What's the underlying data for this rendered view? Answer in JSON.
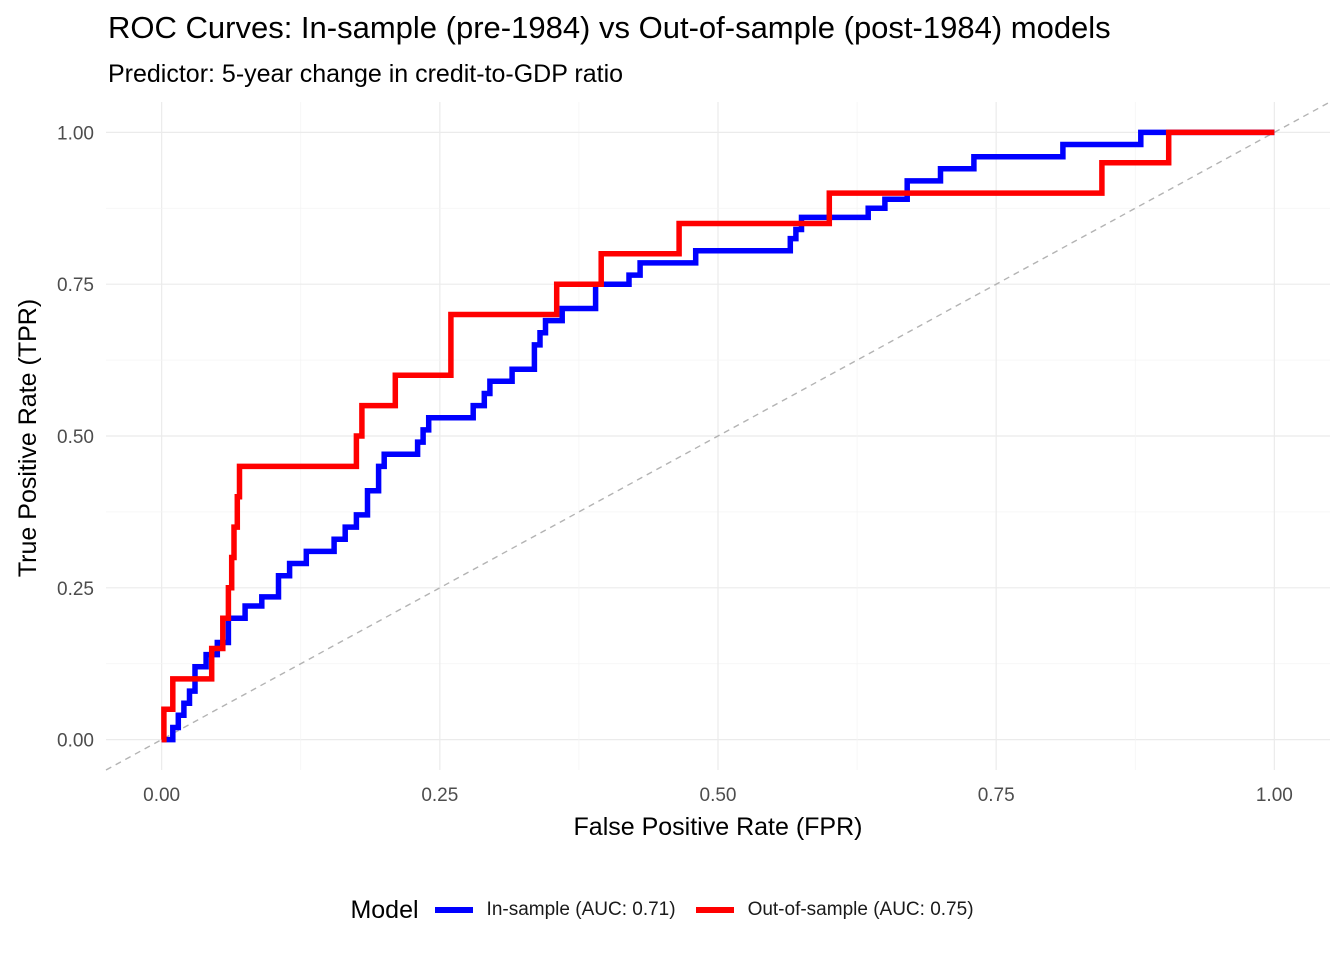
{
  "chart_data": {
    "type": "line",
    "title": "ROC Curves: In-sample (pre-1984) vs Out-of-sample (post-1984) models",
    "subtitle": "Predictor: 5-year change in credit-to-GDP ratio",
    "xlabel": "False Positive Rate (FPR)",
    "ylabel": "True Positive Rate (TPR)",
    "xlim": [
      -0.05,
      1.05
    ],
    "ylim": [
      -0.05,
      1.05
    ],
    "x_ticks": [
      "0.00",
      "0.25",
      "0.50",
      "0.75",
      "1.00"
    ],
    "y_ticks": [
      "0.00",
      "0.25",
      "0.50",
      "0.75",
      "1.00"
    ],
    "grid": true,
    "legend": {
      "title": "Model",
      "position": "bottom"
    },
    "reference_line": {
      "style": "dashed",
      "color": "#b3b3b3",
      "from": [
        0,
        0
      ],
      "to": [
        1,
        1
      ]
    },
    "series": [
      {
        "name": "In-sample (AUC: 0.71)",
        "color": "#0000ff",
        "points": [
          [
            0,
            0
          ],
          [
            0.01,
            0
          ],
          [
            0.01,
            0.02
          ],
          [
            0.015,
            0.02
          ],
          [
            0.015,
            0.04
          ],
          [
            0.02,
            0.04
          ],
          [
            0.02,
            0.06
          ],
          [
            0.025,
            0.06
          ],
          [
            0.025,
            0.08
          ],
          [
            0.03,
            0.08
          ],
          [
            0.03,
            0.12
          ],
          [
            0.04,
            0.12
          ],
          [
            0.04,
            0.14
          ],
          [
            0.05,
            0.14
          ],
          [
            0.05,
            0.16
          ],
          [
            0.06,
            0.16
          ],
          [
            0.06,
            0.2
          ],
          [
            0.075,
            0.2
          ],
          [
            0.075,
            0.22
          ],
          [
            0.09,
            0.22
          ],
          [
            0.09,
            0.235
          ],
          [
            0.105,
            0.235
          ],
          [
            0.105,
            0.27
          ],
          [
            0.115,
            0.27
          ],
          [
            0.115,
            0.29
          ],
          [
            0.13,
            0.29
          ],
          [
            0.13,
            0.31
          ],
          [
            0.155,
            0.31
          ],
          [
            0.155,
            0.33
          ],
          [
            0.165,
            0.33
          ],
          [
            0.165,
            0.35
          ],
          [
            0.175,
            0.35
          ],
          [
            0.175,
            0.37
          ],
          [
            0.185,
            0.37
          ],
          [
            0.185,
            0.41
          ],
          [
            0.195,
            0.41
          ],
          [
            0.195,
            0.45
          ],
          [
            0.2,
            0.45
          ],
          [
            0.2,
            0.47
          ],
          [
            0.23,
            0.47
          ],
          [
            0.23,
            0.49
          ],
          [
            0.235,
            0.49
          ],
          [
            0.235,
            0.51
          ],
          [
            0.24,
            0.51
          ],
          [
            0.24,
            0.53
          ],
          [
            0.28,
            0.53
          ],
          [
            0.28,
            0.55
          ],
          [
            0.29,
            0.55
          ],
          [
            0.29,
            0.57
          ],
          [
            0.295,
            0.57
          ],
          [
            0.295,
            0.59
          ],
          [
            0.315,
            0.59
          ],
          [
            0.315,
            0.61
          ],
          [
            0.335,
            0.61
          ],
          [
            0.335,
            0.65
          ],
          [
            0.34,
            0.65
          ],
          [
            0.34,
            0.67
          ],
          [
            0.345,
            0.67
          ],
          [
            0.345,
            0.69
          ],
          [
            0.36,
            0.69
          ],
          [
            0.36,
            0.71
          ],
          [
            0.39,
            0.71
          ],
          [
            0.39,
            0.75
          ],
          [
            0.42,
            0.75
          ],
          [
            0.42,
            0.765
          ],
          [
            0.43,
            0.765
          ],
          [
            0.43,
            0.785
          ],
          [
            0.48,
            0.785
          ],
          [
            0.48,
            0.805
          ],
          [
            0.565,
            0.805
          ],
          [
            0.565,
            0.825
          ],
          [
            0.57,
            0.825
          ],
          [
            0.57,
            0.84
          ],
          [
            0.575,
            0.84
          ],
          [
            0.575,
            0.86
          ],
          [
            0.635,
            0.86
          ],
          [
            0.635,
            0.875
          ],
          [
            0.65,
            0.875
          ],
          [
            0.65,
            0.89
          ],
          [
            0.67,
            0.89
          ],
          [
            0.67,
            0.92
          ],
          [
            0.7,
            0.92
          ],
          [
            0.7,
            0.94
          ],
          [
            0.73,
            0.94
          ],
          [
            0.73,
            0.96
          ],
          [
            0.81,
            0.96
          ],
          [
            0.81,
            0.98
          ],
          [
            0.88,
            0.98
          ],
          [
            0.88,
            1.0
          ],
          [
            1.0,
            1.0
          ]
        ]
      },
      {
        "name": "Out-of-sample (AUC: 0.75)",
        "color": "#ff0000",
        "points": [
          [
            0,
            0
          ],
          [
            0.002,
            0
          ],
          [
            0.002,
            0.05
          ],
          [
            0.01,
            0.05
          ],
          [
            0.01,
            0.1
          ],
          [
            0.045,
            0.1
          ],
          [
            0.045,
            0.15
          ],
          [
            0.055,
            0.15
          ],
          [
            0.055,
            0.2
          ],
          [
            0.06,
            0.2
          ],
          [
            0.06,
            0.25
          ],
          [
            0.063,
            0.25
          ],
          [
            0.063,
            0.3
          ],
          [
            0.065,
            0.3
          ],
          [
            0.065,
            0.35
          ],
          [
            0.068,
            0.35
          ],
          [
            0.068,
            0.4
          ],
          [
            0.07,
            0.4
          ],
          [
            0.07,
            0.45
          ],
          [
            0.175,
            0.45
          ],
          [
            0.175,
            0.5
          ],
          [
            0.18,
            0.5
          ],
          [
            0.18,
            0.55
          ],
          [
            0.21,
            0.55
          ],
          [
            0.21,
            0.6
          ],
          [
            0.26,
            0.6
          ],
          [
            0.26,
            0.7
          ],
          [
            0.355,
            0.7
          ],
          [
            0.355,
            0.75
          ],
          [
            0.395,
            0.75
          ],
          [
            0.395,
            0.8
          ],
          [
            0.465,
            0.8
          ],
          [
            0.465,
            0.85
          ],
          [
            0.6,
            0.85
          ],
          [
            0.6,
            0.9
          ],
          [
            0.845,
            0.9
          ],
          [
            0.845,
            0.95
          ],
          [
            0.905,
            0.95
          ],
          [
            0.905,
            1.0
          ],
          [
            1.0,
            1.0
          ]
        ]
      }
    ]
  }
}
